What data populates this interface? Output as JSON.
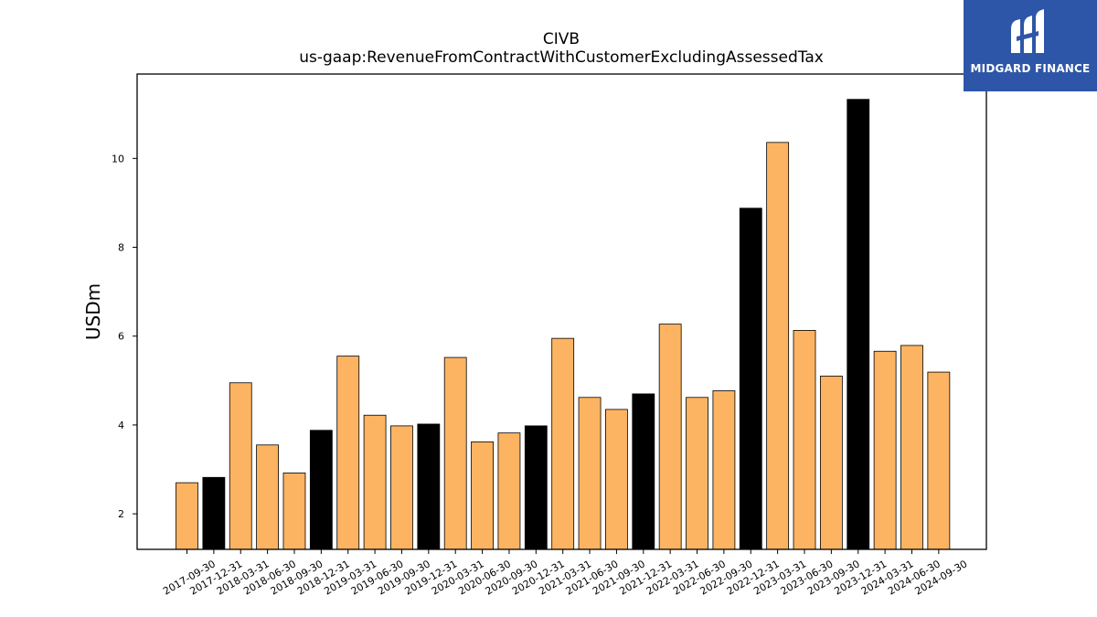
{
  "logo": {
    "text": "MIDGARD FINANCE",
    "icon": "midgard-m-icon",
    "color": "#2e56a8"
  },
  "chart_data": {
    "type": "bar",
    "title": "CIVB",
    "subtitle": "us-gaap:RevenueFromContractWithCustomerExcludingAssessedTax",
    "xlabel": "",
    "ylabel": "USDm",
    "ylim": [
      1.2,
      11.9
    ],
    "yticks": [
      2,
      4,
      6,
      8,
      10
    ],
    "grid": false,
    "colors": {
      "quarter": "#fdb462",
      "year_end": "#000000",
      "edge": "#000000"
    },
    "categories": [
      "2017-09-30",
      "2017-12-31",
      "2018-03-31",
      "2018-06-30",
      "2018-09-30",
      "2018-12-31",
      "2019-03-31",
      "2019-06-30",
      "2019-09-30",
      "2019-12-31",
      "2020-03-31",
      "2020-06-30",
      "2020-09-30",
      "2020-12-31",
      "2021-03-31",
      "2021-06-30",
      "2021-09-30",
      "2021-12-31",
      "2022-03-31",
      "2022-06-30",
      "2022-09-30",
      "2022-12-31",
      "2023-03-31",
      "2023-06-30",
      "2023-09-30",
      "2023-12-31",
      "2024-03-31",
      "2024-06-30",
      "2024-09-30"
    ],
    "values": [
      2.7,
      2.82,
      4.95,
      3.55,
      2.92,
      3.88,
      5.55,
      4.22,
      3.98,
      4.02,
      5.52,
      3.62,
      3.82,
      3.98,
      5.95,
      4.62,
      4.35,
      4.7,
      6.27,
      4.62,
      4.77,
      8.88,
      10.36,
      6.13,
      5.1,
      11.33,
      5.66,
      5.79,
      5.19
    ],
    "highlight": [
      "2017-12-31",
      "2018-12-31",
      "2019-12-31",
      "2020-12-31",
      "2021-12-31",
      "2022-12-31",
      "2023-12-31"
    ]
  }
}
